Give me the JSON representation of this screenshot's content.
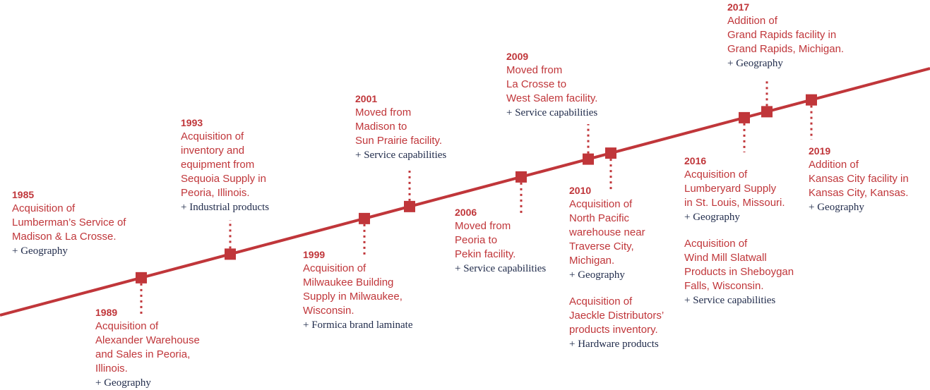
{
  "colors": {
    "accent": "#c0363a",
    "tag": "#1f2a4a"
  },
  "events": {
    "e1985": {
      "year": "1985",
      "lines": [
        "Acquisition of",
        "Lumberman’s Service of",
        "Madison & La Crosse."
      ],
      "tag": "+ Geography"
    },
    "e1989": {
      "year": "1989",
      "lines": [
        "Acquisition of",
        "Alexander Warehouse",
        "and Sales in Peoria,",
        "Illinois."
      ],
      "tag": "+ Geography"
    },
    "e1993": {
      "year": "1993",
      "lines": [
        "Acquisition of",
        "inventory and",
        "equipment from",
        "Sequoia Supply in",
        "Peoria, Illinois."
      ],
      "tag": "+ Industrial products"
    },
    "e1999": {
      "year": "1999",
      "lines": [
        "Acquisition of",
        "Milwaukee Building",
        "Supply in Milwaukee,",
        "Wisconsin."
      ],
      "tag": "+ Formica brand laminate"
    },
    "e2001": {
      "year": "2001",
      "lines": [
        "Moved from",
        "Madison to",
        "Sun Prairie facility."
      ],
      "tag": "+ Service capabilities"
    },
    "e2006": {
      "year": "2006",
      "lines": [
        "Moved from",
        "Peoria to",
        "Pekin facility."
      ],
      "tag": "+ Service capabilities"
    },
    "e2009": {
      "year": "2009",
      "lines": [
        "Moved from",
        "La Crosse to",
        "West Salem facility."
      ],
      "tag": "+ Service capabilities"
    },
    "e2010": {
      "year": "2010",
      "lines": [
        "Acquisition of",
        "North Pacific",
        "warehouse near",
        "Traverse  City,",
        "Michigan."
      ],
      "tag": "+ Geography",
      "lines2": [
        "Acquisition of",
        "Jaeckle Distributors’",
        "products inventory."
      ],
      "tag2": "+ Hardware products"
    },
    "e2016": {
      "year": "2016",
      "lines": [
        "Acquisition of",
        "Lumberyard Supply",
        "in St. Louis, Missouri."
      ],
      "tag": "+ Geography",
      "lines2": [
        "Acquisition of",
        "Wind Mill Slatwall",
        "Products in Sheboygan",
        "Falls, Wisconsin."
      ],
      "tag2": "+ Service capabilities"
    },
    "e2017": {
      "year": "2017",
      "lines": [
        "Addition of",
        "Grand Rapids facility in",
        "Grand Rapids, Michigan."
      ],
      "tag": "+ Geography"
    },
    "e2019": {
      "year": "2019",
      "lines": [
        "Addition of",
        "Kansas City facility in",
        "Kansas City, Kansas."
      ],
      "tag": "+ Geography"
    }
  }
}
